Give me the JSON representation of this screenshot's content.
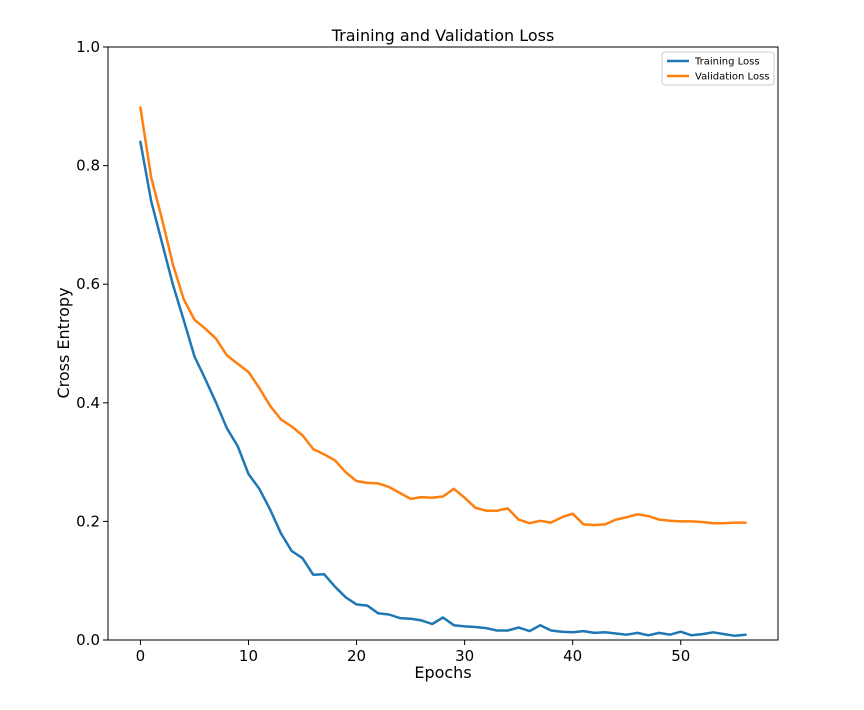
{
  "chart_data": {
    "type": "line",
    "title": "Training and Validation Loss",
    "xlabel": "Epochs",
    "ylabel": "Cross Entropy",
    "xlim": [
      -3,
      59
    ],
    "ylim": [
      0.0,
      1.0
    ],
    "xticks": [
      0,
      10,
      20,
      30,
      40,
      50
    ],
    "yticks": [
      0.0,
      0.2,
      0.4,
      0.6,
      0.8,
      1.0
    ],
    "xtick_labels": [
      "0",
      "10",
      "20",
      "30",
      "40",
      "50"
    ],
    "ytick_labels": [
      "0.0",
      "0.2",
      "0.4",
      "0.6",
      "0.8",
      "1.0"
    ],
    "grid": false,
    "legend_position": "top-right",
    "x": [
      0,
      1,
      2,
      3,
      4,
      5,
      6,
      7,
      8,
      9,
      10,
      11,
      12,
      13,
      14,
      15,
      16,
      17,
      18,
      19,
      20,
      21,
      22,
      23,
      24,
      25,
      26,
      27,
      28,
      29,
      30,
      31,
      32,
      33,
      34,
      35,
      36,
      37,
      38,
      39,
      40,
      41,
      42,
      43,
      44,
      45,
      46,
      47,
      48,
      49,
      50,
      51,
      52,
      53,
      54,
      55,
      56
    ],
    "series": [
      {
        "name": "Training Loss",
        "color": "#1f77b4",
        "values": [
          0.84,
          0.74,
          0.67,
          0.6,
          0.54,
          0.478,
          0.44,
          0.4,
          0.357,
          0.327,
          0.28,
          0.255,
          0.22,
          0.18,
          0.15,
          0.138,
          0.11,
          0.111,
          0.09,
          0.072,
          0.06,
          0.058,
          0.045,
          0.043,
          0.037,
          0.036,
          0.033,
          0.027,
          0.038,
          0.025,
          0.023,
          0.022,
          0.02,
          0.016,
          0.016,
          0.021,
          0.015,
          0.025,
          0.016,
          0.014,
          0.013,
          0.015,
          0.012,
          0.013,
          0.011,
          0.009,
          0.012,
          0.008,
          0.012,
          0.009,
          0.014,
          0.008,
          0.01,
          0.013,
          0.01,
          0.007,
          0.009
        ]
      },
      {
        "name": "Validation Loss",
        "color": "#ff7f0e",
        "values": [
          0.898,
          0.78,
          0.71,
          0.634,
          0.575,
          0.54,
          0.525,
          0.508,
          0.48,
          0.466,
          0.452,
          0.425,
          0.395,
          0.372,
          0.36,
          0.345,
          0.322,
          0.313,
          0.303,
          0.283,
          0.268,
          0.265,
          0.264,
          0.258,
          0.248,
          0.238,
          0.241,
          0.24,
          0.242,
          0.255,
          0.24,
          0.223,
          0.218,
          0.218,
          0.222,
          0.203,
          0.197,
          0.201,
          0.198,
          0.207,
          0.213,
          0.195,
          0.194,
          0.195,
          0.203,
          0.207,
          0.212,
          0.209,
          0.203,
          0.201,
          0.2,
          0.2,
          0.199,
          0.197,
          0.197,
          0.198,
          0.198
        ]
      }
    ]
  }
}
